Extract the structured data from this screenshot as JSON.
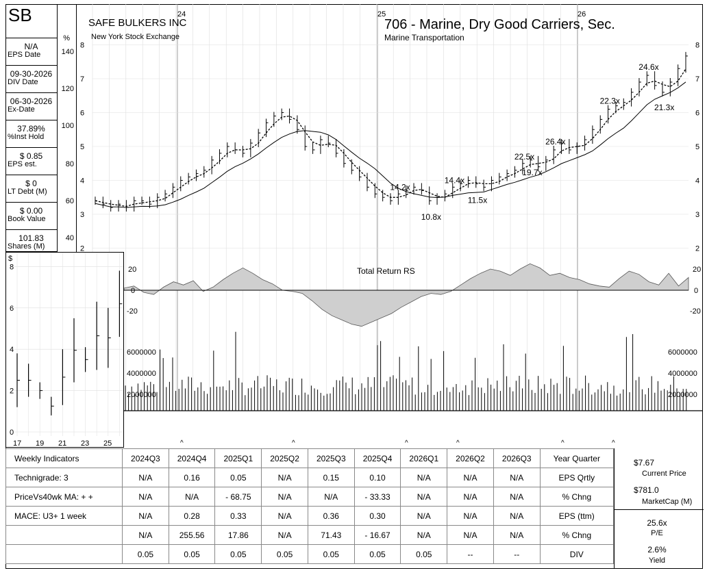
{
  "header": {
    "ticker": "SB",
    "company": "SAFE BULKERS INC",
    "exchange": "New York Stock Exchange",
    "industry": "706 - Marine, Dry Good Carriers, Sec.",
    "sector": "Marine Transportation",
    "year_markers": [
      "24",
      "25",
      "26"
    ]
  },
  "left_panel": {
    "items": [
      {
        "value": "N/A",
        "label": "EPS Date"
      },
      {
        "value": "09-30-2026",
        "label": "DIV Date"
      },
      {
        "value": "06-30-2026",
        "label": "Ex-Date"
      },
      {
        "value": "37.89%",
        "label": "%Inst Hold"
      },
      {
        "value": "$ 0.85",
        "label": "EPS est."
      },
      {
        "value": "$ 0",
        "label": "LT Debt (M)"
      },
      {
        "value": "$ 0.00",
        "label": "Book Value"
      },
      {
        "value": "101.83",
        "label": "Shares (M)"
      }
    ],
    "pct_header": "%",
    "pct_ticks": [
      "140",
      "120",
      "100",
      "80",
      "60",
      "40"
    ]
  },
  "chart_data": [
    {
      "type": "line",
      "title": "",
      "price_axis": [
        2,
        3,
        4,
        5,
        6,
        7,
        8
      ],
      "price_weekly": [
        3.4,
        3.3,
        3.2,
        3.3,
        3.2,
        3.4,
        3.4,
        3.3,
        3.5,
        3.6,
        3.8,
        4.0,
        4.1,
        4.2,
        4.3,
        4.6,
        4.8,
        5.0,
        4.9,
        4.8,
        5.1,
        5.4,
        5.7,
        5.9,
        6.0,
        5.8,
        5.5,
        5.0,
        4.9,
        5.2,
        5.1,
        4.8,
        4.5,
        4.3,
        4.1,
        3.8,
        3.6,
        3.5,
        3.4,
        3.6,
        3.7,
        3.8,
        3.7,
        3.4,
        3.5,
        3.6,
        3.8,
        3.9,
        4.0,
        3.9,
        3.8,
        4.0,
        4.1,
        4.2,
        4.3,
        4.5,
        4.6,
        4.4,
        4.6,
        4.9,
        5.1,
        4.9,
        5.0,
        5.2,
        5.5,
        5.8,
        6.1,
        6.2,
        6.3,
        6.6,
        6.9,
        7.1,
        6.8,
        6.6,
        6.9,
        7.3,
        7.67
      ],
      "pe_labels": [
        "14.2x",
        "10.8x",
        "14.4x",
        "11.5x",
        "22.5x",
        "19.7x",
        "26.4x",
        "22.3x",
        "24.6x",
        "21.3x"
      ],
      "ma_series": [
        "10-week MA (dashed)",
        "40-week MA (solid)"
      ]
    },
    {
      "type": "area",
      "title": "Total Return RS",
      "yticks": [
        "20",
        "0",
        "-20"
      ],
      "values": [
        2,
        4,
        -2,
        -4,
        3,
        8,
        5,
        9,
        -1,
        3,
        10,
        16,
        21,
        16,
        10,
        6,
        0,
        -1,
        -3,
        -10,
        -18,
        -24,
        -28,
        -32,
        -34,
        -30,
        -26,
        -22,
        -16,
        -11,
        -6,
        -3,
        -4,
        -1,
        5,
        11,
        16,
        20,
        18,
        14,
        20,
        25,
        21,
        14,
        16,
        12,
        10,
        6,
        4,
        3,
        11,
        18,
        15,
        8,
        5,
        16,
        4,
        12
      ]
    },
    {
      "type": "bar",
      "title": "Volume",
      "yticks": [
        "6000000",
        "4000000",
        "2000000"
      ]
    },
    {
      "type": "bar",
      "title": "Quarterly price range",
      "ylabel": "$",
      "yticks": [
        "0",
        "2",
        "4",
        "6",
        "8"
      ],
      "categories": [
        "17",
        "19",
        "21",
        "23",
        "25"
      ],
      "bars": [
        [
          1.2,
          3.8
        ],
        [
          1.7,
          3.3
        ],
        [
          1.6,
          2.4
        ],
        [
          0.8,
          1.7
        ],
        [
          1.3,
          4.0
        ],
        [
          2.4,
          5.5
        ],
        [
          2.9,
          4.1
        ],
        [
          3.0,
          6.3
        ],
        [
          3.1,
          6.0
        ],
        [
          4.6,
          7.8
        ]
      ]
    }
  ],
  "table": {
    "headers": [
      "Weekly Indicators",
      "2024Q3",
      "2024Q4",
      "2025Q1",
      "2025Q2",
      "2025Q3",
      "2025Q4",
      "2026Q1",
      "2026Q2",
      "2026Q3",
      "Year Quarter"
    ],
    "rows": [
      {
        "label": "Technigrade: 3",
        "cells": [
          "N/A",
          "0.16",
          "0.05",
          "N/A",
          "0.15",
          "0.10",
          "N/A",
          "N/A",
          "N/A"
        ],
        "metric": "EPS Qrtly"
      },
      {
        "label": "PriceVs40wk MA:  + +",
        "cells": [
          "N/A",
          "N/A",
          "- 68.75",
          "N/A",
          "N/A",
          "- 33.33",
          "N/A",
          "N/A",
          "N/A"
        ],
        "metric": "% Chng"
      },
      {
        "label": "MACE: U3+  1 week",
        "cells": [
          "N/A",
          "0.28",
          "0.33",
          "N/A",
          "0.36",
          "0.30",
          "N/A",
          "N/A",
          "N/A"
        ],
        "metric": "EPS (ttm)"
      },
      {
        "label": "",
        "cells": [
          "N/A",
          "255.56",
          "17.86",
          "N/A",
          "71.43",
          "- 16.67",
          "N/A",
          "N/A",
          "N/A"
        ],
        "metric": "% Chng"
      },
      {
        "label": "",
        "cells": [
          "0.05",
          "0.05",
          "0.05",
          "0.05",
          "0.05",
          "0.05",
          "0.05",
          "--",
          "--"
        ],
        "metric": "DIV"
      }
    ]
  },
  "side_stats": {
    "current_price": "$7.67",
    "current_price_label": "Current Price",
    "market_cap": "$781.0",
    "market_cap_label": "MarketCap (M)",
    "pe": "25.6x",
    "pe_label": "P/E",
    "yield": "2.6%",
    "yield_label": "Yield"
  }
}
